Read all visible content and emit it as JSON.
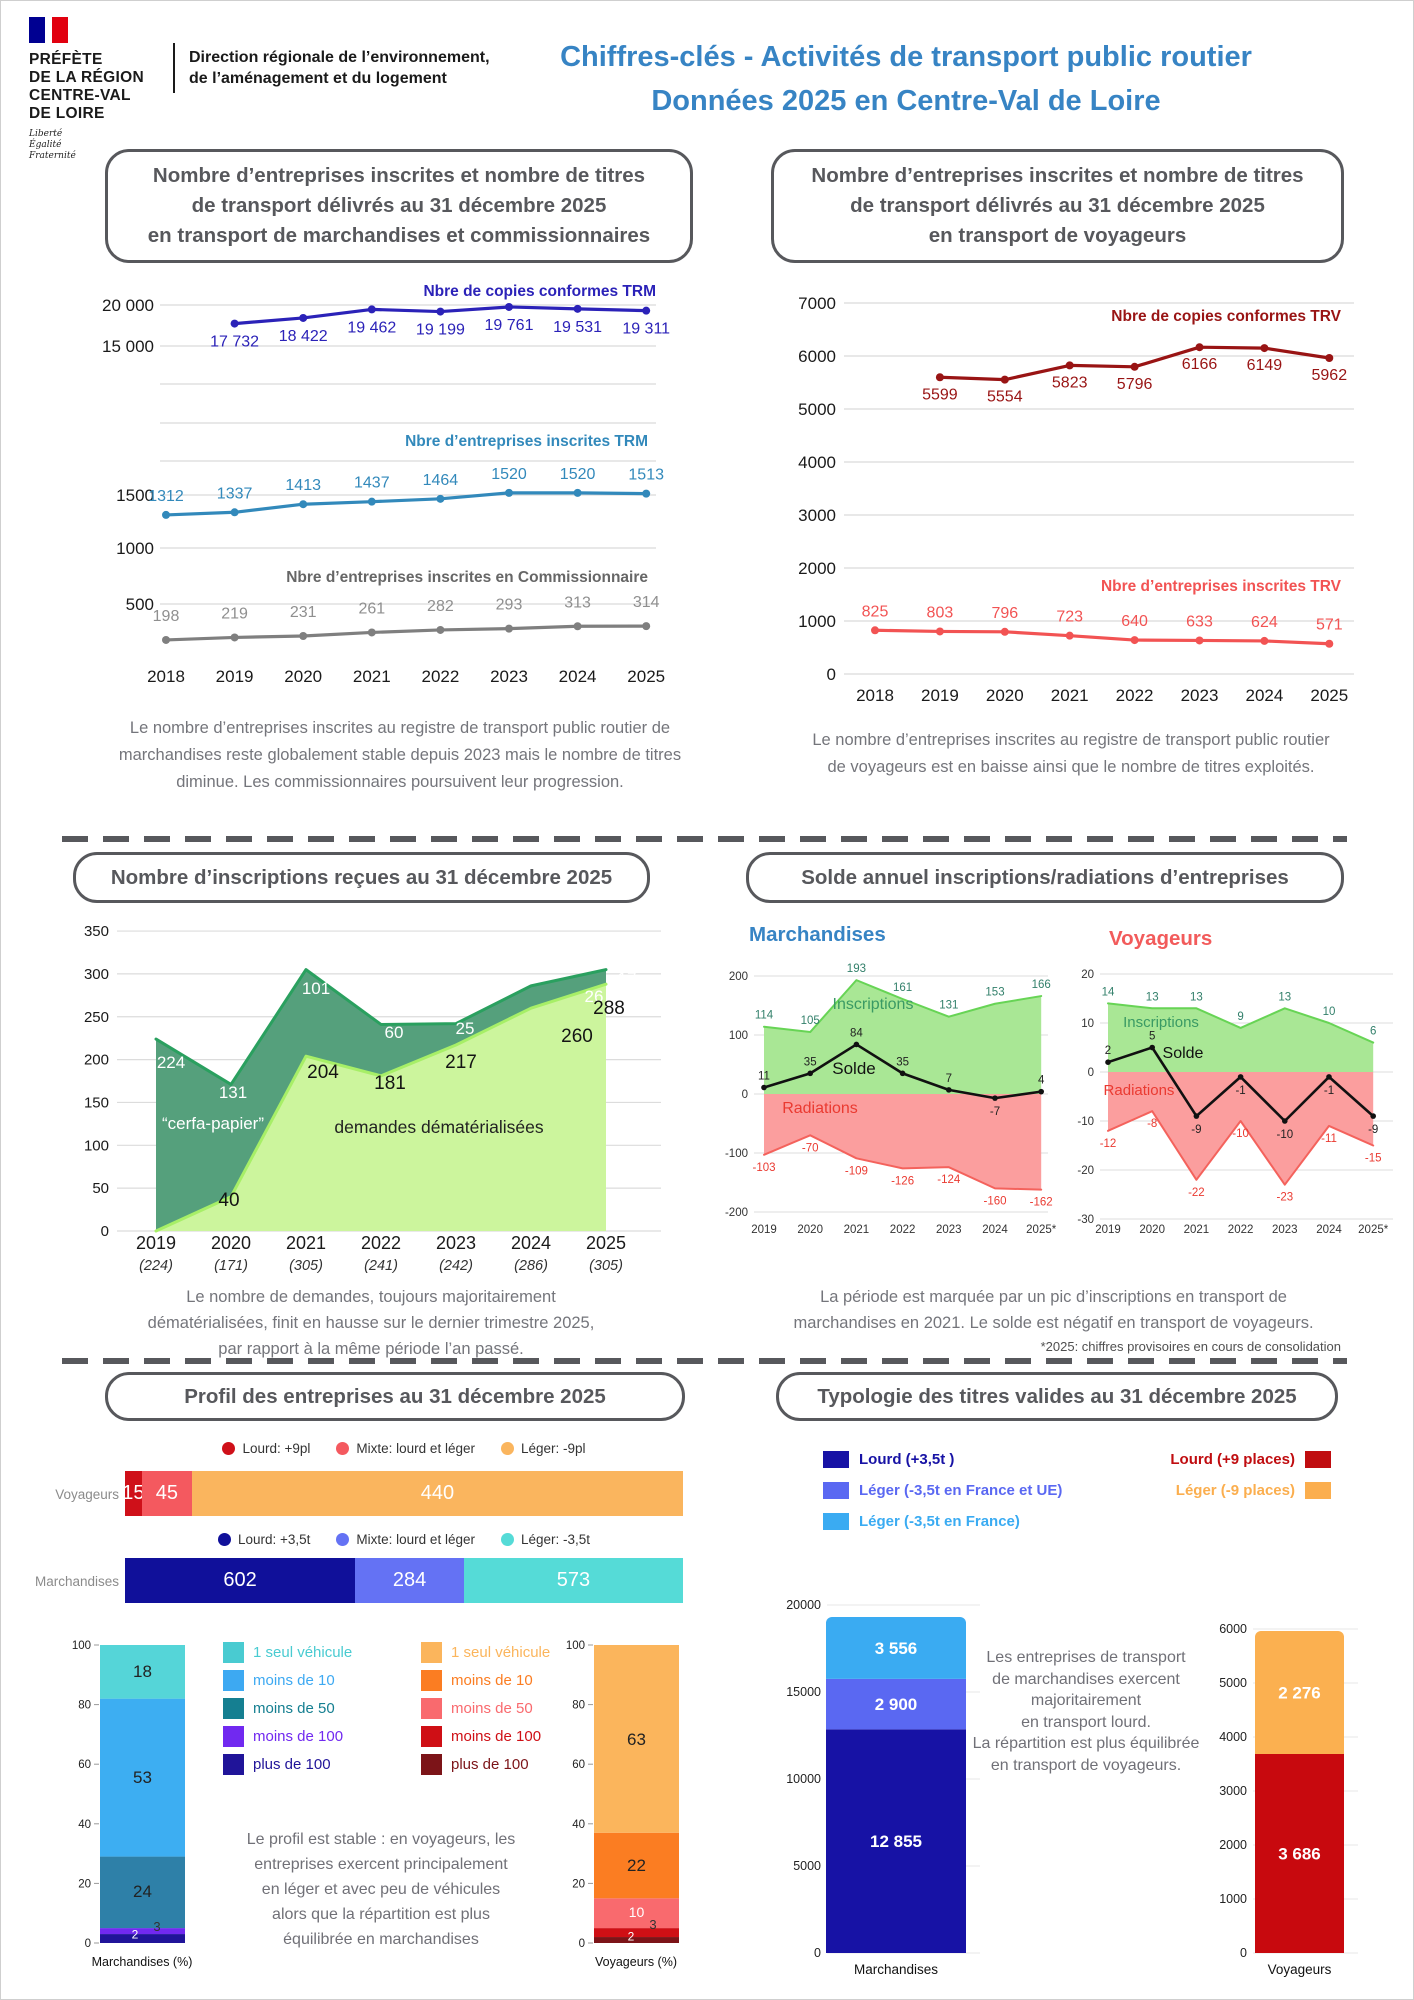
{
  "header": {
    "prefecture_lines": [
      "PRÉFÈTE",
      "DE LA RÉGION",
      "CENTRE-VAL",
      "DE LOIRE"
    ],
    "motto_lines": [
      "Liberté",
      "Égalité",
      "Fraternité"
    ],
    "direction_lines": [
      "Direction régionale de l’environnement,",
      "de l’aménagement et du logement"
    ],
    "title_lines": [
      "Chiffres-clés - Activités de transport public routier",
      "Données 2025 en Centre-Val de Loire"
    ]
  },
  "sections": {
    "trm": {
      "title_lines": [
        "Nombre d’entreprises inscrites et nombre de titres",
        "de transport délivrés au 31 décembre 2025",
        "en transport de marchandises et commissionnaires"
      ],
      "caption_lines": [
        "Le nombre d’entreprises inscrites au registre de transport public routier de",
        "marchandises reste globalement stable depuis 2023 mais le nombre de titres",
        "diminue. Les commissionnaires poursuivent leur progression."
      ]
    },
    "trv": {
      "title_lines": [
        "Nombre d’entreprises inscrites et nombre de titres",
        "de transport délivrés au 31 décembre 2025",
        "en transport de voyageurs"
      ],
      "caption_lines": [
        "Le nombre d’entreprises inscrites au registre de transport public routier",
        "de voyageurs est en baisse ainsi que le nombre de titres exploités."
      ]
    },
    "inscriptions": {
      "title": "Nombre d’inscriptions reçues au 31 décembre 2025",
      "caption_lines": [
        "Le nombre de demandes, toujours majoritairement",
        "dématérialisées, finit en hausse sur le dernier trimestre 2025,",
        "par rapport à la même période l’an passé."
      ]
    },
    "solde": {
      "title": "Solde annuel inscriptions/radiations d’entreprises",
      "caption_lines": [
        "La période est marquée par un pic d’inscriptions en transport de",
        "marchandises en 2021. Le solde est négatif en transport de voyageurs."
      ],
      "footnote": "*2025: chiffres provisoires en cours de consolidation"
    },
    "profil": {
      "title": "Profil des entreprises au 31 décembre 2025",
      "caption_lines": [
        "Le profil est stable : en voyageurs, les",
        "entreprises exercent principalement",
        "en léger et avec peu de véhicules",
        "alors que la répartition est plus",
        "équilibrée en marchandises"
      ]
    },
    "typologie": {
      "title": "Typologie des titres valides au 31 décembre 2025",
      "caption_lines": [
        "Les entreprises de transport",
        "de marchandises exercent",
        "majoritairement",
        "en transport lourd.",
        "La répartition est plus équilibrée",
        "en transport de voyageurs."
      ]
    }
  },
  "chart_data": [
    {
      "id": "trm",
      "type": "line",
      "x": [
        "2018",
        "2019",
        "2020",
        "2021",
        "2022",
        "2023",
        "2024",
        "2025"
      ],
      "y_ticks": [
        "20 000",
        "15 000",
        "1500",
        "1000",
        "500"
      ],
      "series": [
        {
          "name": "Nbre de copies conformes TRM",
          "color": "#2b22b8",
          "start_index": 1,
          "values": [
            17732,
            18422,
            19462,
            19199,
            19761,
            19531,
            19311
          ],
          "labels": [
            "17 732",
            "18 422",
            "19 462",
            "19 199",
            "19 761",
            "19 531",
            "19 311"
          ]
        },
        {
          "name": "Nbre d’entreprises inscrites TRM",
          "color": "#3289bb",
          "start_index": 0,
          "values": [
            1312,
            1337,
            1413,
            1437,
            1464,
            1520,
            1520,
            1513
          ]
        },
        {
          "name": "Nbre d’entreprises inscrites en Commissionnaire",
          "color": "#7f7f7f",
          "label_color": "#8f8f8f",
          "title_color": "#666666",
          "start_index": 0,
          "values": [
            198,
            219,
            231,
            261,
            282,
            293,
            313,
            314
          ]
        }
      ]
    },
    {
      "id": "trv",
      "type": "line",
      "x": [
        "2018",
        "2019",
        "2020",
        "2021",
        "2022",
        "2023",
        "2024",
        "2025"
      ],
      "y_ticks": [
        "7000",
        "6000",
        "5000",
        "4000",
        "3000",
        "2000",
        "1000",
        "0"
      ],
      "series": [
        {
          "name": "Nbre de copies conformes TRV",
          "color": "#991414",
          "start_index": 1,
          "values": [
            5599,
            5554,
            5823,
            5796,
            6166,
            6149,
            5962
          ]
        },
        {
          "name": "Nbre d’entreprises inscrites TRV",
          "color": "#f25353",
          "start_index": 0,
          "values": [
            825,
            803,
            796,
            723,
            640,
            633,
            624,
            571
          ]
        }
      ]
    },
    {
      "id": "inscriptions",
      "type": "area",
      "x": [
        "2019",
        "2020",
        "2021",
        "2022",
        "2023",
        "2024",
        "2025"
      ],
      "x_totals": [
        "(224)",
        "(171)",
        "(305)",
        "(241)",
        "(242)",
        "(286)",
        "(305)"
      ],
      "y_ticks": [
        "0",
        "50",
        "100",
        "150",
        "200",
        "250",
        "300",
        "350"
      ],
      "series": [
        {
          "name": "demandes dématérialisées",
          "values": [
            0,
            40,
            204,
            181,
            217,
            260,
            288
          ],
          "fill": "#ccf59d",
          "line": "#a7ef67",
          "label_color": "#141414"
        },
        {
          "name": "“cerfa-papier”",
          "values": [
            224,
            131,
            101,
            60,
            25,
            26,
            17
          ],
          "fill": "#55a07c",
          "line": "#2aa05f",
          "label_color": "#ffffff"
        }
      ]
    },
    {
      "id": "solde_marchandises",
      "type": "area-line",
      "subtitle": "Marchandises",
      "subtitle_color": "#3784c4",
      "x": [
        "2019",
        "2020",
        "2021",
        "2022",
        "2023",
        "2024",
        "2025*"
      ],
      "y_ticks": [
        "200",
        "100",
        "0",
        "-100",
        "-200"
      ],
      "series": [
        {
          "name": "Inscriptions",
          "values": [
            114,
            105,
            193,
            161,
            131,
            153,
            166
          ],
          "fill": "#a9e795",
          "line": "#67d455",
          "label_color": "#33806b",
          "name_color": "#3a9a64"
        },
        {
          "name": "Radiations",
          "values": [
            -103,
            -70,
            -109,
            -126,
            -124,
            -160,
            -162
          ],
          "fill": "#fb9e9e",
          "line": "#f4625c",
          "label_color": "#ea3a31",
          "name_color": "#ea3a31"
        },
        {
          "name": "Solde",
          "values": [
            11,
            35,
            84,
            35,
            7,
            -7,
            4
          ],
          "line": "#111111",
          "label_color": "#222222",
          "name_color": "#111111"
        }
      ]
    },
    {
      "id": "solde_voyageurs",
      "type": "area-line",
      "subtitle": "Voyageurs",
      "subtitle_color": "#f25b5b",
      "x": [
        "2019",
        "2020",
        "2021",
        "2022",
        "2023",
        "2024",
        "2025*"
      ],
      "y_ticks": [
        "20",
        "10",
        "0",
        "-10",
        "-20",
        "-30"
      ],
      "series": [
        {
          "name": "Inscriptions",
          "values": [
            14,
            13,
            13,
            9,
            13,
            10,
            6
          ],
          "fill": "#a9e795",
          "line": "#67d455",
          "label_color": "#33806b",
          "name_color": "#3a9a64"
        },
        {
          "name": "Radiations",
          "values": [
            -12,
            -8,
            -22,
            -10,
            -23,
            -11,
            -15
          ],
          "fill": "#fb9e9e",
          "line": "#f4625c",
          "label_color": "#ea3a31",
          "name_color": "#ea3a31"
        },
        {
          "name": "Solde",
          "values": [
            2,
            5,
            -9,
            -1,
            -10,
            -1,
            -9
          ],
          "line": "#111111",
          "label_color": "#222222",
          "name_color": "#111111"
        }
      ]
    },
    {
      "id": "profil",
      "type": "bar",
      "legend_voyageurs": [
        {
          "label": "Lourd: +9pl",
          "color": "#cf1019"
        },
        {
          "label": "Mixte: lourd et léger",
          "color": "#f4595f"
        },
        {
          "label": "Léger: -9pl",
          "color": "#fab55e"
        }
      ],
      "voyageurs_bar": {
        "row_label": "Voyageurs",
        "segments": [
          {
            "value": 15,
            "color": "#cf1019"
          },
          {
            "value": 45,
            "color": "#f4595f"
          },
          {
            "value": 440,
            "color": "#fab55e"
          }
        ]
      },
      "legend_marchandises": [
        {
          "label": "Lourd: +3,5t",
          "color": "#10109a"
        },
        {
          "label": "Mixte: lourd et léger",
          "color": "#6472f4"
        },
        {
          "label": "Léger: -3,5t",
          "color": "#55dbd7"
        }
      ],
      "marchandises_bar": {
        "row_label": "Marchandises",
        "segments": [
          {
            "value": 602,
            "color": "#10109a"
          },
          {
            "value": 284,
            "color": "#6472f4"
          },
          {
            "value": 573,
            "color": "#55dbd7"
          }
        ]
      },
      "pct_axis": [
        "0",
        "20",
        "40",
        "60",
        "80",
        "100"
      ],
      "legend_fleet_m": [
        {
          "label": "1 seul véhicule",
          "color": "#49cbd1"
        },
        {
          "label": "moins de 10",
          "color": "#3da9f2"
        },
        {
          "label": "moins de 50",
          "color": "#157f91"
        },
        {
          "label": "moins de 100",
          "color": "#7129f0"
        },
        {
          "label": "plus de 100",
          "color": "#201499"
        }
      ],
      "legend_fleet_v": [
        {
          "label": "1 seul véhicule",
          "color": "#fbb55c"
        },
        {
          "label": "moins de 10",
          "color": "#fb7d22"
        },
        {
          "label": "moins de 50",
          "color": "#f96a6e"
        },
        {
          "label": "moins de 100",
          "color": "#cf0f15"
        },
        {
          "label": "plus de 100",
          "color": "#7c1418"
        }
      ],
      "marchandises_pct": {
        "x_label": "Marchandises (%)",
        "segments_bottom_up": [
          {
            "value": 3,
            "color": "#201499"
          },
          {
            "value": 2,
            "color": "#7129f0"
          },
          {
            "value": 24,
            "color": "#2e80a8"
          },
          {
            "value": 53,
            "color": "#3daef2"
          },
          {
            "value": 18,
            "color": "#55d5d8"
          }
        ]
      },
      "voyageurs_pct": {
        "x_label": "Voyageurs (%)",
        "segments_bottom_up": [
          {
            "value": 2,
            "color": "#7c1418"
          },
          {
            "value": 3,
            "color": "#cf0f15"
          },
          {
            "value": 10,
            "color": "#f96a6e"
          },
          {
            "value": 22,
            "color": "#fb7d22"
          },
          {
            "value": 63,
            "color": "#fbb55c"
          }
        ]
      }
    },
    {
      "id": "typologie",
      "type": "bar",
      "legend_marchandises": [
        {
          "label": "Lourd (+3,5t )",
          "color": "#1712a5"
        },
        {
          "label": "Léger (-3,5t en France et UE)",
          "color": "#5a68f2"
        },
        {
          "label": "Léger (-3,5t en France)",
          "color": "#3aabf2"
        }
      ],
      "legend_voyageurs": [
        {
          "label": "Lourd (+9 places)",
          "color": "#c00d10"
        },
        {
          "label": "Léger (-9 places)",
          "color": "#fbae4e"
        }
      ],
      "marchandises": {
        "x_label": "Marchandises",
        "y_ticks": [
          "0",
          "5000",
          "10000",
          "15000",
          "20000"
        ],
        "segments_bottom_up": [
          {
            "value": 12855,
            "label": "12 855",
            "color": "#1712a5"
          },
          {
            "value": 2900,
            "label": "2 900",
            "color": "#5a68f2"
          },
          {
            "value": 3556,
            "label": "3 556",
            "color": "#3aabf2"
          }
        ]
      },
      "voyageurs": {
        "x_label": "Voyageurs",
        "y_ticks": [
          "0",
          "1000",
          "2000",
          "3000",
          "4000",
          "5000",
          "6000"
        ],
        "segments_bottom_up": [
          {
            "value": 3686,
            "label": "3 686",
            "color": "#c8090e"
          },
          {
            "value": 2276,
            "label": "2 276",
            "color": "#fbb050"
          }
        ]
      }
    }
  ]
}
